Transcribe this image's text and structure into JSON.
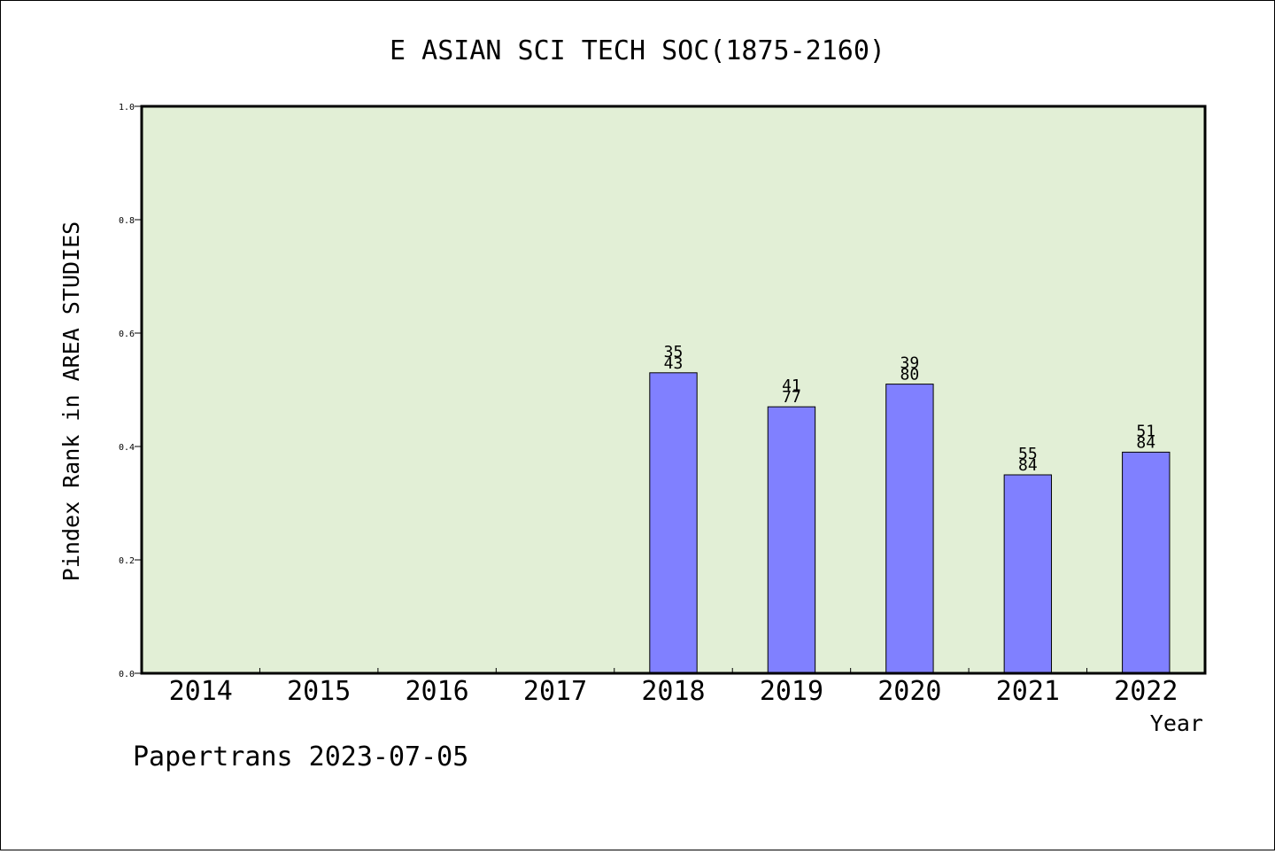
{
  "chart_data": {
    "type": "bar",
    "title": "E ASIAN SCI TECH SOC(1875-2160)",
    "xlabel": "Year",
    "ylabel": "Pindex Rank in AREA STUDIES",
    "ylim": [
      0,
      1.0
    ],
    "yticks": [
      "0.0",
      "0.2",
      "0.4",
      "0.6",
      "0.8",
      "1.0"
    ],
    "categories": [
      "2014",
      "2015",
      "2016",
      "2017",
      "2018",
      "2019",
      "2020",
      "2021",
      "2022"
    ],
    "values": [
      null,
      null,
      null,
      null,
      0.53,
      0.47,
      0.51,
      0.35,
      0.39
    ],
    "bar_labels": [
      null,
      null,
      null,
      null,
      [
        "35",
        "43"
      ],
      [
        "41",
        "77"
      ],
      [
        "39",
        "80"
      ],
      [
        "55",
        "84"
      ],
      [
        "51",
        "84"
      ]
    ],
    "grid": false,
    "colors": {
      "plot_background": "#e2efd6",
      "bar_fill": "#8080ff",
      "bar_stroke": "#000000"
    }
  },
  "footer": "Papertrans 2023-07-05"
}
